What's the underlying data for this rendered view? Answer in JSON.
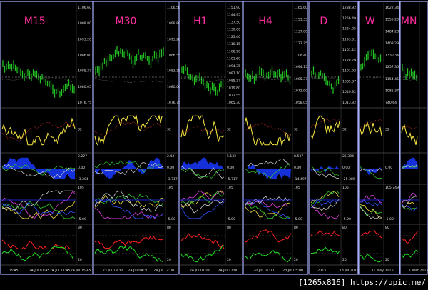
{
  "panels": [
    {
      "title": "M15",
      "price_labels": [
        "1106.60",
        "1099.80",
        "1093.20",
        "1086.60",
        "1085.37",
        "1080.05",
        "1076.75"
      ],
      "indicator_labels": [
        [
          "32"
        ],
        [
          "2.227",
          "0.00",
          "-3.304"
        ],
        [
          "105",
          "-5.00"
        ],
        [
          "80",
          "20"
        ]
      ],
      "dates": [
        "03:45",
        "24 Jul 07:45",
        "24 Jul 11:45",
        "24 Jul 15:45"
      ]
    },
    {
      "title": "M30",
      "price_labels": [
        "1106.50",
        "1099.80",
        "1093.20",
        "1086.55",
        "1083.35",
        "1080.00",
        "1076.75"
      ],
      "indicator_labels": [
        [
          "32"
        ],
        [
          "2.43",
          "0.00",
          "-3.717"
        ],
        [
          "105",
          "-5.00"
        ],
        [
          "80",
          "20"
        ]
      ],
      "dates": [
        "23 Jul 19:30",
        "24 Jul 04:30",
        "24 Jul 12:00"
      ]
    },
    {
      "title": "H1",
      "price_labels": [
        "1151.90",
        "1144.95",
        "1137.50",
        "1130.60",
        "1123.40",
        "1116.15",
        "1108.90",
        "1101.60",
        "1094.35",
        "1087.10",
        "1085.37",
        "1079.80",
        "1072.55",
        "1065.30"
      ],
      "indicator_labels": [
        [
          "32"
        ],
        [
          "5.132",
          "0.00",
          "-5.717"
        ],
        [
          "105",
          "-5.00"
        ],
        [
          "80",
          "20"
        ]
      ],
      "dates": [
        "24 Jul 01:00",
        "24 Jul 17:00"
      ]
    },
    {
      "title": "H4",
      "price_labels": [
        "1165.60",
        "1151.35",
        "1137.00",
        "1122.75",
        "1108.40",
        "1094.15",
        "1085.37",
        "1072.90",
        "1058.05"
      ],
      "indicator_labels": [
        [
          "32"
        ],
        [
          "8.537",
          "0.00",
          "-14.497"
        ],
        [
          "105",
          "-5.00"
        ],
        [
          "80",
          "20"
        ]
      ],
      "dates": [
        "20 Jul 16:00",
        "23 Jul 05:00"
      ]
    },
    {
      "title": "D",
      "price_labels": [
        "1288.92",
        "1256.49",
        "1224.05",
        "1193.61",
        "1161.22",
        "1128.79",
        "1101.92",
        "1085.37",
        "1040.92",
        "1013.92"
      ],
      "indicator_labels": [
        [
          "32"
        ],
        [
          "25.304",
          "0.00",
          "-25.389"
        ],
        [
          "105",
          "-5.00"
        ],
        [
          "80",
          "20"
        ]
      ],
      "dates": [
        "2015",
        "13 Jul 2015"
      ]
    },
    {
      "title": "W",
      "price_labels": [
        "1622.34",
        "1555.20",
        "1484.28",
        "1403.29",
        "1330.34",
        "1257.36",
        "1154.45",
        "1085.37",
        "740.64"
      ],
      "indicator_labels": [
        [
          "32"
        ],
        [
          "0.00"
        ],
        [
          "105.749",
          "-5.00"
        ],
        [
          "80",
          "20"
        ]
      ],
      "dates": [
        "31 May 2015"
      ]
    },
    {
      "title": "MN",
      "price_labels": [],
      "indicator_labels": [
        [],
        [],
        [],
        []
      ],
      "dates": [
        "1 Mar 2015"
      ]
    }
  ],
  "watermark": "[1265x816] https://upic.me/"
}
